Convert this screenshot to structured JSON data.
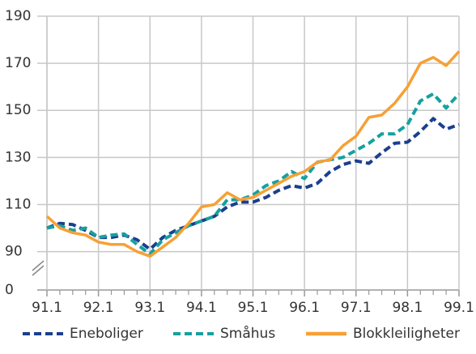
{
  "chart_data": {
    "type": "line",
    "categories": [
      "91.1",
      null,
      null,
      null,
      "92.1",
      null,
      null,
      null,
      "93.1",
      null,
      null,
      null,
      "94.1",
      null,
      null,
      null,
      "95.1",
      null,
      null,
      null,
      "96.1",
      null,
      null,
      null,
      "97.1",
      null,
      null,
      null,
      "98.1",
      null,
      null,
      null,
      "99.1"
    ],
    "series": [
      {
        "name": "Eneboliger",
        "color": "#1b3f8f",
        "dashed": true,
        "values": [
          100,
          102,
          101.5,
          99,
          96,
          96,
          97,
          95,
          91,
          96,
          99,
          101,
          103,
          105,
          109,
          111,
          111,
          113,
          116,
          118,
          117,
          119,
          124,
          127,
          128.5,
          127.5,
          132,
          136,
          136.5,
          141,
          146.5,
          142,
          144
        ]
      },
      {
        "name": "Småhus",
        "color": "#17a0a0",
        "dashed": true,
        "values": [
          100,
          101,
          99,
          100,
          96,
          97,
          97.5,
          93,
          89,
          95,
          98,
          101,
          103,
          105,
          112,
          112,
          114,
          118,
          120,
          124,
          121,
          128,
          129,
          130,
          133,
          136,
          140,
          140,
          144,
          154,
          157,
          151,
          157
        ]
      },
      {
        "name": "Blokkleiligheter",
        "color": "#f7a035",
        "dashed": false,
        "values": [
          105,
          100,
          98,
          97,
          94,
          93,
          93,
          90,
          88,
          92,
          96,
          102,
          109,
          110,
          115,
          112,
          113,
          116,
          119,
          122,
          124,
          128,
          129,
          135,
          139,
          147,
          148,
          153,
          160,
          170,
          172.5,
          169,
          175
        ]
      }
    ],
    "ylim": [
      0,
      190
    ],
    "y_break": [
      0,
      84
    ],
    "yticks": [
      0,
      90,
      110,
      130,
      150,
      170,
      190
    ],
    "grid": true,
    "legend": "bottom"
  }
}
